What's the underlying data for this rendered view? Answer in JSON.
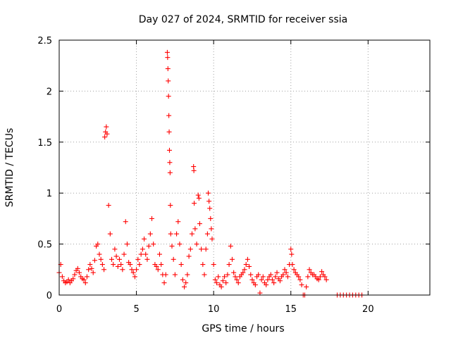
{
  "chart_data": {
    "type": "scatter",
    "title": "Day 027 of 2024, SRMTID for receiver ssia",
    "xlabel": "GPS time / hours",
    "ylabel": "SRMTID / TECUs",
    "xlim": [
      0,
      24
    ],
    "ylim": [
      0,
      2.5
    ],
    "x_ticks": [
      0,
      5,
      10,
      15,
      20
    ],
    "y_ticks": [
      0,
      0.5,
      1,
      1.5,
      2,
      2.5
    ],
    "x_tick_labels": [
      "0",
      "5",
      "10",
      "15",
      "20"
    ],
    "y_tick_labels": [
      "0",
      "0.5",
      "1",
      "1.5",
      "2",
      "2.5"
    ],
    "grid": true,
    "marker": "+",
    "series": [
      {
        "name": "SRMTID",
        "color": "#ff0000",
        "x": [
          0.0,
          0.1,
          0.2,
          0.3,
          0.4,
          0.5,
          0.6,
          0.7,
          0.8,
          0.9,
          1.0,
          1.1,
          1.2,
          1.3,
          1.4,
          1.5,
          1.6,
          1.7,
          1.8,
          1.9,
          2.0,
          2.1,
          2.2,
          2.3,
          2.4,
          2.5,
          2.6,
          2.7,
          2.8,
          2.9,
          2.95,
          3.0,
          3.05,
          3.1,
          3.2,
          3.3,
          3.4,
          3.5,
          3.6,
          3.7,
          3.8,
          3.9,
          4.0,
          4.1,
          4.2,
          4.3,
          4.4,
          4.5,
          4.6,
          4.7,
          4.8,
          4.9,
          5.0,
          5.1,
          5.2,
          5.3,
          5.4,
          5.5,
          5.6,
          5.7,
          5.8,
          5.9,
          6.0,
          6.1,
          6.2,
          6.3,
          6.4,
          6.5,
          6.6,
          6.7,
          6.8,
          6.9,
          7.0,
          7.02,
          7.04,
          7.06,
          7.08,
          7.1,
          7.12,
          7.14,
          7.16,
          7.18,
          7.2,
          7.22,
          7.3,
          7.4,
          7.5,
          7.6,
          7.7,
          7.8,
          7.9,
          8.0,
          8.1,
          8.2,
          8.3,
          8.4,
          8.5,
          8.6,
          8.7,
          8.72,
          8.74,
          8.8,
          8.9,
          9.0,
          9.05,
          9.1,
          9.2,
          9.3,
          9.4,
          9.5,
          9.6,
          9.65,
          9.7,
          9.75,
          9.8,
          9.85,
          9.9,
          10.0,
          10.1,
          10.2,
          10.3,
          10.4,
          10.5,
          10.6,
          10.7,
          10.8,
          10.9,
          11.0,
          11.1,
          11.2,
          11.3,
          11.4,
          11.5,
          11.6,
          11.7,
          11.8,
          11.9,
          12.0,
          12.1,
          12.2,
          12.3,
          12.4,
          12.5,
          12.6,
          12.7,
          12.8,
          12.9,
          13.0,
          13.1,
          13.2,
          13.3,
          13.4,
          13.5,
          13.6,
          13.7,
          13.8,
          13.9,
          14.0,
          14.1,
          14.2,
          14.3,
          14.4,
          14.5,
          14.6,
          14.7,
          14.8,
          14.9,
          15.0,
          15.05,
          15.1,
          15.2,
          15.3,
          15.4,
          15.5,
          15.6,
          15.7,
          15.8,
          15.9,
          16.0,
          16.1,
          16.2,
          16.3,
          16.4,
          16.5,
          16.6,
          16.7,
          16.8,
          16.9,
          17.0,
          17.1,
          17.2,
          17.3,
          18.0,
          18.2,
          18.4,
          18.6,
          18.8,
          19.0,
          19.2,
          19.4,
          19.6
        ],
        "y": [
          0.22,
          0.3,
          0.18,
          0.14,
          0.12,
          0.13,
          0.15,
          0.12,
          0.14,
          0.16,
          0.2,
          0.24,
          0.26,
          0.22,
          0.18,
          0.16,
          0.15,
          0.12,
          0.18,
          0.25,
          0.3,
          0.26,
          0.22,
          0.34,
          0.48,
          0.5,
          0.4,
          0.35,
          0.3,
          0.25,
          1.55,
          1.6,
          1.65,
          1.58,
          0.88,
          0.6,
          0.35,
          0.3,
          0.45,
          0.38,
          0.28,
          0.35,
          0.3,
          0.25,
          0.4,
          0.72,
          0.5,
          0.32,
          0.3,
          0.25,
          0.22,
          0.18,
          0.25,
          0.35,
          0.3,
          0.4,
          0.45,
          0.55,
          0.4,
          0.35,
          0.48,
          0.6,
          0.75,
          0.5,
          0.3,
          0.28,
          0.25,
          0.4,
          0.3,
          0.2,
          0.12,
          0.2,
          2.38,
          2.33,
          2.22,
          2.1,
          1.95,
          1.76,
          1.6,
          1.42,
          1.3,
          1.2,
          0.88,
          0.6,
          0.48,
          0.35,
          0.2,
          0.6,
          0.72,
          0.5,
          0.3,
          0.15,
          0.08,
          0.12,
          0.2,
          0.38,
          0.45,
          0.6,
          1.26,
          1.22,
          0.9,
          0.65,
          0.5,
          0.98,
          0.95,
          0.7,
          0.45,
          0.3,
          0.2,
          0.45,
          0.6,
          1.0,
          0.92,
          0.85,
          0.75,
          0.65,
          0.55,
          0.3,
          0.15,
          0.12,
          0.18,
          0.1,
          0.08,
          0.14,
          0.18,
          0.12,
          0.2,
          0.3,
          0.48,
          0.35,
          0.22,
          0.18,
          0.15,
          0.12,
          0.18,
          0.2,
          0.22,
          0.25,
          0.3,
          0.35,
          0.28,
          0.2,
          0.15,
          0.12,
          0.1,
          0.18,
          0.2,
          0.02,
          0.15,
          0.18,
          0.12,
          0.1,
          0.15,
          0.18,
          0.2,
          0.15,
          0.12,
          0.18,
          0.22,
          0.16,
          0.14,
          0.18,
          0.2,
          0.25,
          0.22,
          0.18,
          0.3,
          0.45,
          0.4,
          0.3,
          0.25,
          0.22,
          0.2,
          0.18,
          0.15,
          0.1,
          0.0,
          0.0,
          0.08,
          0.18,
          0.25,
          0.22,
          0.2,
          0.2,
          0.18,
          0.16,
          0.15,
          0.18,
          0.23,
          0.2,
          0.18,
          0.15,
          0.0,
          0.0,
          0.0,
          0.0,
          0.0,
          0.0,
          0.0,
          0.0,
          0.0
        ]
      }
    ]
  }
}
